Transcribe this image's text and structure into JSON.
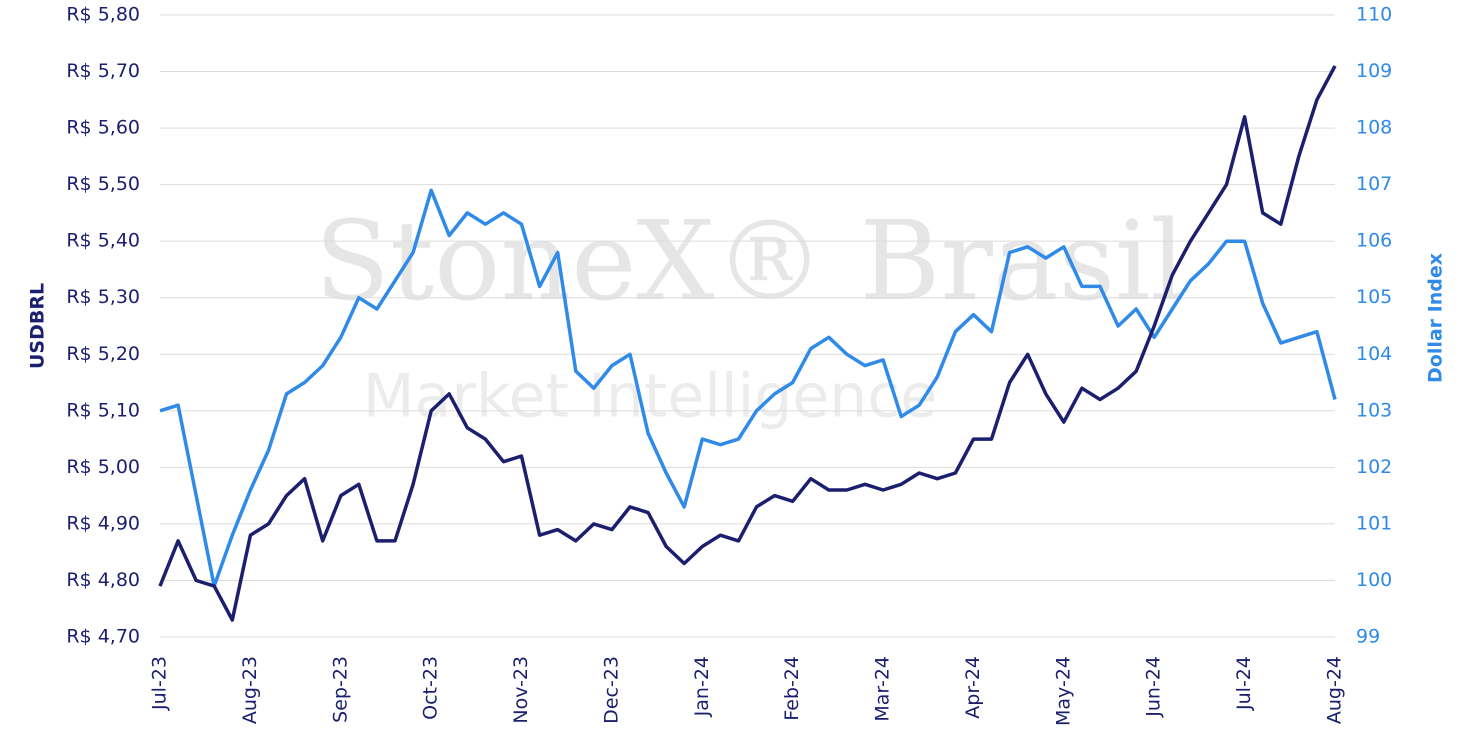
{
  "chart_data": {
    "type": "line",
    "watermark": [
      "StoneX® Brasil",
      "Market Intelligence"
    ],
    "y_label": "USDBRL",
    "y2_label": "Dollar Index",
    "categories": [
      "Jul-23",
      null,
      null,
      null,
      null,
      "Aug-23",
      null,
      null,
      null,
      null,
      "Sep-23",
      null,
      null,
      null,
      null,
      "Oct-23",
      null,
      null,
      null,
      null,
      "Nov-23",
      null,
      null,
      null,
      null,
      "Dec-23",
      null,
      null,
      null,
      null,
      "Jan-24",
      null,
      null,
      null,
      null,
      "Feb-24",
      null,
      null,
      null,
      null,
      "Mar-24",
      null,
      null,
      null,
      null,
      "Apr-24",
      null,
      null,
      null,
      null,
      "May-24",
      null,
      null,
      null,
      null,
      "Jun-24",
      null,
      null,
      null,
      null,
      "Jul-24",
      null,
      null,
      null,
      null,
      "Aug-24"
    ],
    "series": [
      {
        "name": "USDBRL",
        "color": "#1b1f6e",
        "values": [
          4.79,
          4.87,
          4.8,
          4.79,
          4.73,
          4.88,
          4.9,
          4.95,
          4.98,
          4.87,
          4.95,
          4.97,
          4.87,
          4.87,
          4.97,
          5.1,
          5.13,
          5.07,
          5.05,
          5.01,
          5.02,
          4.88,
          4.89,
          4.87,
          4.9,
          4.89,
          4.93,
          4.92,
          4.86,
          4.83,
          4.86,
          4.88,
          4.87,
          4.93,
          4.95,
          4.94,
          4.98,
          4.96,
          4.96,
          4.97,
          4.96,
          4.97,
          4.99,
          4.98,
          4.99,
          5.05,
          5.05,
          5.15,
          5.2,
          5.13,
          5.08,
          5.14,
          5.12,
          5.14,
          5.17,
          5.25,
          5.34,
          5.4,
          5.45,
          5.5,
          5.62,
          5.45,
          5.43,
          5.55,
          5.65,
          5.71
        ]
      },
      {
        "name": "Dollar Index",
        "color": "#2f8ae8",
        "axis": "y2",
        "values": [
          103.0,
          103.1,
          101.5,
          99.9,
          100.8,
          101.6,
          102.3,
          103.3,
          103.5,
          103.8,
          104.3,
          105.0,
          104.8,
          105.3,
          105.8,
          106.9,
          106.1,
          106.5,
          106.3,
          106.5,
          106.3,
          105.2,
          105.8,
          103.7,
          103.4,
          103.8,
          104.0,
          102.6,
          101.9,
          101.3,
          102.5,
          102.4,
          102.5,
          103.0,
          103.3,
          103.5,
          104.1,
          104.3,
          104.0,
          103.8,
          103.9,
          102.9,
          103.1,
          103.6,
          104.4,
          104.7,
          104.4,
          105.8,
          105.9,
          105.7,
          105.9,
          105.2,
          105.2,
          104.5,
          104.8,
          104.3,
          104.8,
          105.3,
          105.6,
          106.0,
          106.0,
          104.9,
          104.2,
          104.3,
          104.4,
          103.2
        ]
      }
    ],
    "ylim": [
      4.7,
      5.8
    ],
    "yticks": [
      {
        "value": 4.7,
        "label": "R$ 4,70"
      },
      {
        "value": 4.8,
        "label": "R$ 4,80"
      },
      {
        "value": 4.9,
        "label": "R$ 4,90"
      },
      {
        "value": 5.0,
        "label": "R$ 5,00"
      },
      {
        "value": 5.1,
        "label": "R$ 5,10"
      },
      {
        "value": 5.2,
        "label": "R$ 5,20"
      },
      {
        "value": 5.3,
        "label": "R$ 5,30"
      },
      {
        "value": 5.4,
        "label": "R$ 5,40"
      },
      {
        "value": 5.5,
        "label": "R$ 5,50"
      },
      {
        "value": 5.6,
        "label": "R$ 5,60"
      },
      {
        "value": 5.7,
        "label": "R$ 5,70"
      },
      {
        "value": 5.8,
        "label": "R$ 5,80"
      }
    ],
    "y2lim": [
      99,
      110
    ],
    "y2ticks": [
      99,
      100,
      101,
      102,
      103,
      104,
      105,
      106,
      107,
      108,
      109,
      110
    ],
    "grid": true
  }
}
